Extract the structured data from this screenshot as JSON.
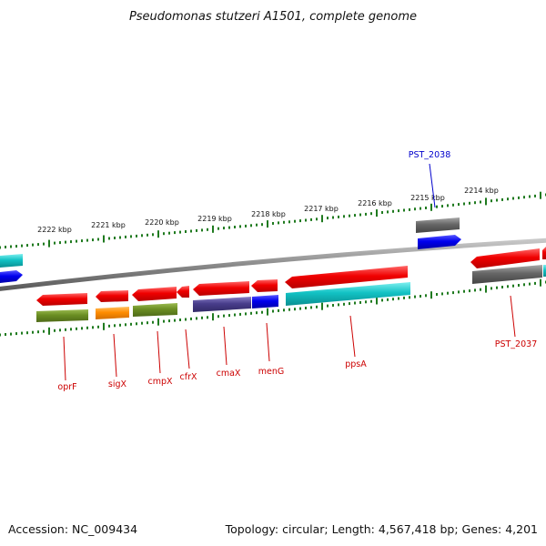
{
  "title": "Pseudomonas stutzeri A1501, complete genome",
  "footer": {
    "accession": "Accession: NC_009434",
    "topology": "Topology: circular; Length: 4,567,418 bp; Genes: 4,201"
  },
  "colors": {
    "red": "#f00000",
    "blue": "#0000ee",
    "cyan": "#12c2c4",
    "gray": "#666666",
    "olive": "#6b8e23",
    "orange": "#ff8c00",
    "slate": "#483d8b",
    "tick_green": "#1f7a1f",
    "label_red": "#cc0000",
    "label_blue": "#0000cc",
    "backbone": "#8a8a8a"
  },
  "scale": {
    "ticks": [
      "2222 kbp",
      "2221 kbp",
      "2220 kbp",
      "2219 kbp",
      "2218 kbp",
      "2217 kbp",
      "2216 kbp",
      "2215 kbp",
      "2214 kbp"
    ]
  },
  "labels": {
    "oprF": "oprF",
    "sigX": "sigX",
    "cmpX": "cmpX",
    "cfrX": "cfrX",
    "cmaX": "cmaX",
    "menG": "menG",
    "ppsA": "ppsA",
    "PST_2037": "PST_2037",
    "PST_2038": "PST_2038"
  }
}
